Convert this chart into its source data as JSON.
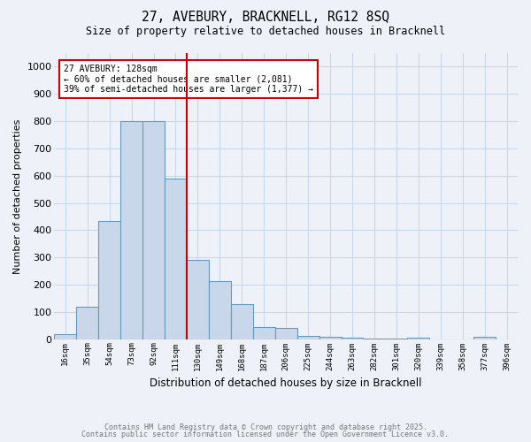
{
  "title": "27, AVEBURY, BRACKNELL, RG12 8SQ",
  "subtitle": "Size of property relative to detached houses in Bracknell",
  "xlabel": "Distribution of detached houses by size in Bracknell",
  "ylabel": "Number of detached properties",
  "bins": [
    "16sqm",
    "35sqm",
    "54sqm",
    "73sqm",
    "92sqm",
    "111sqm",
    "130sqm",
    "149sqm",
    "168sqm",
    "187sqm",
    "206sqm",
    "225sqm",
    "244sqm",
    "263sqm",
    "282sqm",
    "301sqm",
    "320sqm",
    "339sqm",
    "358sqm",
    "377sqm",
    "396sqm"
  ],
  "values": [
    18,
    120,
    435,
    800,
    800,
    590,
    290,
    213,
    130,
    45,
    40,
    12,
    8,
    5,
    3,
    2,
    5,
    0,
    0,
    8,
    0
  ],
  "bar_color": "#c8d8ea",
  "bar_edge_color": "#6699bb",
  "marker_bin_index": 6,
  "marker_color": "#cc0000",
  "annotation_line1": "27 AVEBURY: 128sqm",
  "annotation_line2": "← 60% of detached houses are smaller (2,081)",
  "annotation_line3": "39% of semi-detached houses are larger (1,377) →",
  "annotation_box_color": "#ffffff",
  "annotation_box_edge": "#cc0000",
  "ylim": [
    0,
    1050
  ],
  "yticks": [
    0,
    100,
    200,
    300,
    400,
    500,
    600,
    700,
    800,
    900,
    1000
  ],
  "grid_color": "#c8d8ea",
  "background_color": "#eef2f8",
  "footer1": "Contains HM Land Registry data © Crown copyright and database right 2025.",
  "footer2": "Contains public sector information licensed under the Open Government Licence v3.0."
}
